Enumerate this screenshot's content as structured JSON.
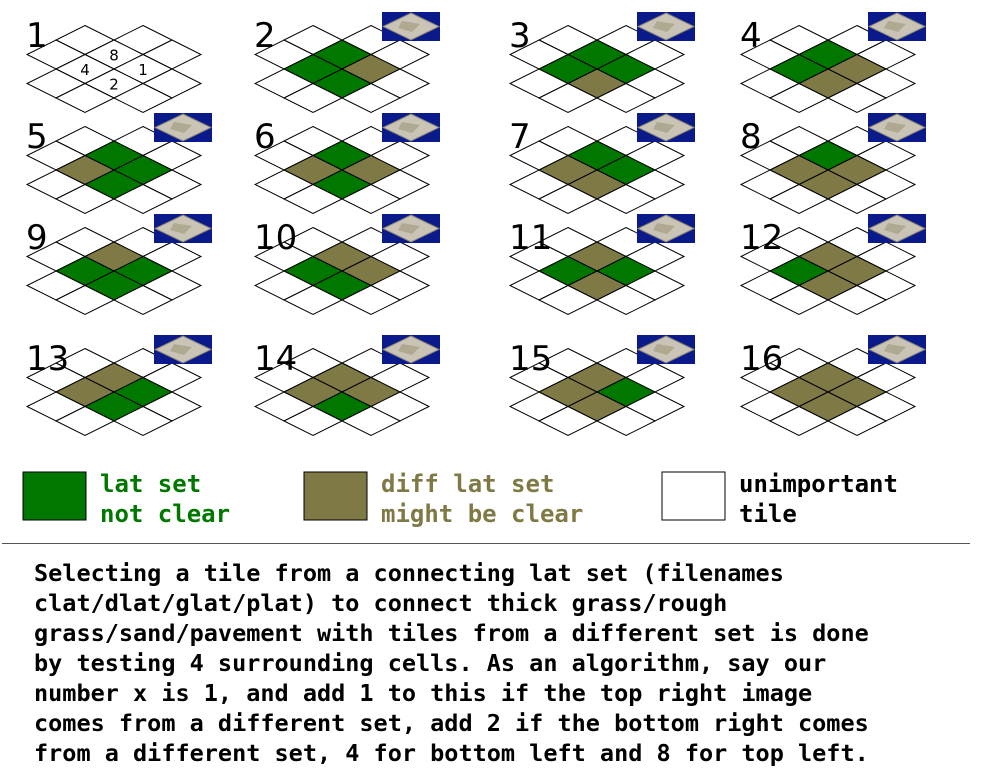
{
  "colors": {
    "green": "#007800",
    "olive": "#7f7a45",
    "white": "#ffffff",
    "outline": "#000000",
    "thumb_bg": "#0b1a8a",
    "thumb_tile": "#c9c4b6"
  },
  "diagrams": [
    {
      "label": "1",
      "cells": [
        "w",
        "w",
        "w",
        "w"
      ],
      "corner_labels": {
        "top": "8",
        "right": "1",
        "bottom": "2",
        "left": "4"
      },
      "thumbnail": false
    },
    {
      "label": "2",
      "cells": [
        "g",
        "o",
        "g",
        "g"
      ],
      "thumbnail": true
    },
    {
      "label": "3",
      "cells": [
        "g",
        "g",
        "o",
        "g"
      ],
      "thumbnail": true
    },
    {
      "label": "4",
      "cells": [
        "g",
        "o",
        "o",
        "g"
      ],
      "thumbnail": true
    },
    {
      "label": "5",
      "cells": [
        "g",
        "g",
        "g",
        "o"
      ],
      "thumbnail": true
    },
    {
      "label": "6",
      "cells": [
        "g",
        "o",
        "g",
        "o"
      ],
      "thumbnail": true
    },
    {
      "label": "7",
      "cells": [
        "g",
        "g",
        "o",
        "o"
      ],
      "thumbnail": true
    },
    {
      "label": "8",
      "cells": [
        "g",
        "o",
        "o",
        "o"
      ],
      "thumbnail": true
    },
    {
      "label": "9",
      "cells": [
        "o",
        "g",
        "g",
        "g"
      ],
      "thumbnail": true
    },
    {
      "label": "10",
      "cells": [
        "o",
        "o",
        "g",
        "g"
      ],
      "thumbnail": true
    },
    {
      "label": "11",
      "cells": [
        "o",
        "g",
        "o",
        "g"
      ],
      "thumbnail": true
    },
    {
      "label": "12",
      "cells": [
        "o",
        "o",
        "o",
        "g"
      ],
      "thumbnail": true
    },
    {
      "label": "13",
      "cells": [
        "o",
        "g",
        "g",
        "o"
      ],
      "thumbnail": true
    },
    {
      "label": "14",
      "cells": [
        "o",
        "o",
        "g",
        "o"
      ],
      "thumbnail": true
    },
    {
      "label": "15",
      "cells": [
        "o",
        "g",
        "o",
        "o"
      ],
      "thumbnail": true
    },
    {
      "label": "16",
      "cells": [
        "o",
        "o",
        "o",
        "o"
      ],
      "thumbnail": true
    }
  ],
  "legend": [
    {
      "swatch": "green",
      "lines": [
        "lat set",
        "not clear"
      ],
      "text_color": "#007800"
    },
    {
      "swatch": "olive",
      "lines": [
        "diff lat set",
        "might be clear"
      ],
      "text_color": "#7f7a45"
    },
    {
      "swatch": "white",
      "lines": [
        "unimportant",
        "tile"
      ],
      "text_color": "#000000"
    }
  ],
  "algorithm_text": "Selecting a tile from a connecting lat set (filenames\nclat/dlat/glat/plat) to connect thick grass/rough\ngrass/sand/pavement with tiles from a different set is done\nby testing 4 surrounding cells. As an algorithm, say our\nnumber x is 1, and add 1 to this if the top right image\ncomes from a different set, add 2 if the bottom right comes\nfrom a different set, 4 for bottom left and 8 for top left."
}
